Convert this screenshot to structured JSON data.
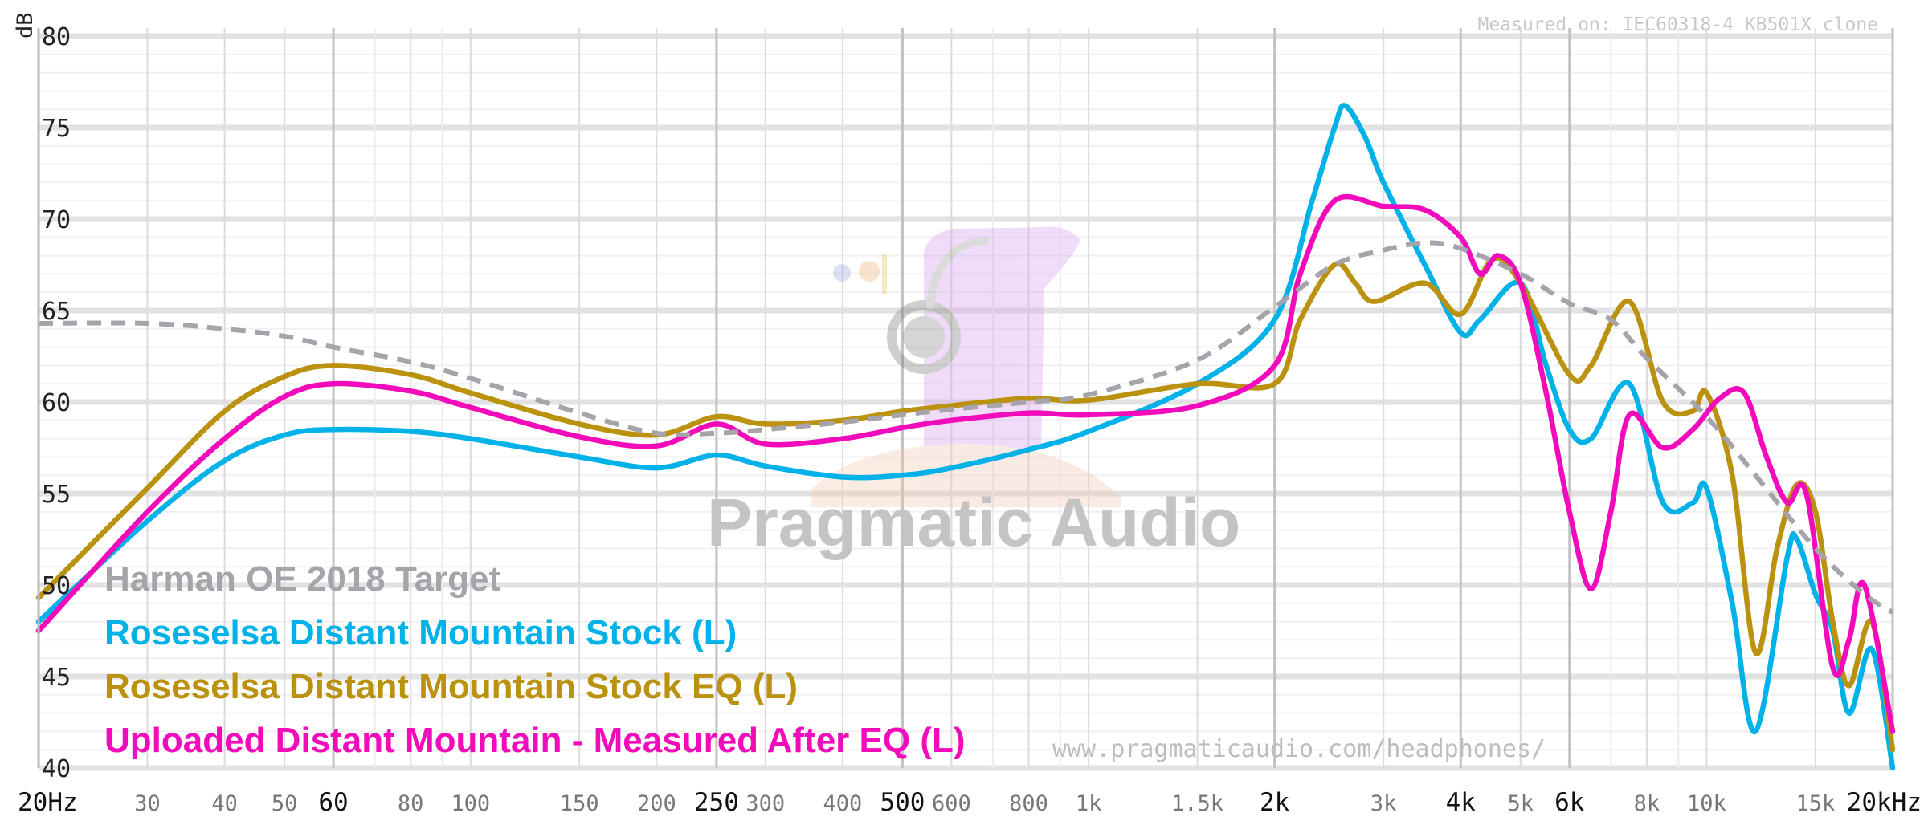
{
  "chart_data": {
    "type": "line",
    "y_unit": "dB",
    "ylim": [
      40,
      80
    ],
    "xlim": [
      20,
      20000
    ],
    "x_scale": "log",
    "y_ticks": [
      40,
      45,
      50,
      55,
      60,
      65,
      70,
      75,
      80
    ],
    "x_ticks": [
      {
        "f": 20,
        "label": "20Hz",
        "major": true
      },
      {
        "f": 30,
        "label": "30",
        "major": false
      },
      {
        "f": 40,
        "label": "40",
        "major": false
      },
      {
        "f": 50,
        "label": "50",
        "major": false
      },
      {
        "f": 60,
        "label": "60",
        "major": true
      },
      {
        "f": 80,
        "label": "80",
        "major": false
      },
      {
        "f": 100,
        "label": "100",
        "major": false
      },
      {
        "f": 150,
        "label": "150",
        "major": false
      },
      {
        "f": 200,
        "label": "200",
        "major": false
      },
      {
        "f": 250,
        "label": "250",
        "major": true
      },
      {
        "f": 300,
        "label": "300",
        "major": false
      },
      {
        "f": 400,
        "label": "400",
        "major": false
      },
      {
        "f": 500,
        "label": "500",
        "major": true
      },
      {
        "f": 600,
        "label": "600",
        "major": false
      },
      {
        "f": 800,
        "label": "800",
        "major": false
      },
      {
        "f": 1000,
        "label": "1k",
        "major": false
      },
      {
        "f": 1500,
        "label": "1.5k",
        "major": false
      },
      {
        "f": 2000,
        "label": "2k",
        "major": true
      },
      {
        "f": 3000,
        "label": "3k",
        "major": false
      },
      {
        "f": 4000,
        "label": "4k",
        "major": true
      },
      {
        "f": 5000,
        "label": "5k",
        "major": false
      },
      {
        "f": 6000,
        "label": "6k",
        "major": true
      },
      {
        "f": 8000,
        "label": "8k",
        "major": false
      },
      {
        "f": 10000,
        "label": "10k",
        "major": false
      },
      {
        "f": 15000,
        "label": "15k",
        "major": false
      },
      {
        "f": 20000,
        "label": "20kHz",
        "major": true
      }
    ],
    "grid": true,
    "measured_note": "Measured on: IEC60318-4 KB501X clone",
    "watermark": "Pragmatic Audio",
    "url": "www.pragmaticaudio.com/headphones/",
    "legend_position": "bottom-left",
    "series": [
      {
        "name": "Harman OE 2018 Target",
        "color": "#a6a3aa",
        "dashed": true,
        "points": [
          [
            20,
            64.3
          ],
          [
            30,
            64.3
          ],
          [
            40,
            64.0
          ],
          [
            50,
            63.6
          ],
          [
            60,
            63.0
          ],
          [
            80,
            62.2
          ],
          [
            100,
            61.3
          ],
          [
            150,
            59.4
          ],
          [
            200,
            58.3
          ],
          [
            250,
            58.3
          ],
          [
            300,
            58.5
          ],
          [
            400,
            58.9
          ],
          [
            500,
            59.3
          ],
          [
            600,
            59.6
          ],
          [
            800,
            60.0
          ],
          [
            1000,
            60.4
          ],
          [
            1500,
            62.3
          ],
          [
            2000,
            65.2
          ],
          [
            2500,
            67.5
          ],
          [
            3000,
            68.3
          ],
          [
            3500,
            68.7
          ],
          [
            4000,
            68.4
          ],
          [
            5000,
            67.0
          ],
          [
            6000,
            65.4
          ],
          [
            7000,
            64.5
          ],
          [
            8000,
            62.4
          ],
          [
            10000,
            59.2
          ],
          [
            12000,
            56.0
          ],
          [
            15000,
            52.0
          ],
          [
            18000,
            49.5
          ],
          [
            20000,
            48.5
          ]
        ]
      },
      {
        "name": "Roseselsa Distant Mountain Stock (L)",
        "color": "#00b2e8",
        "dashed": false,
        "points": [
          [
            20,
            48.0
          ],
          [
            30,
            53.5
          ],
          [
            40,
            56.8
          ],
          [
            50,
            58.2
          ],
          [
            60,
            58.5
          ],
          [
            80,
            58.4
          ],
          [
            100,
            58.0
          ],
          [
            150,
            57.0
          ],
          [
            200,
            56.4
          ],
          [
            250,
            57.1
          ],
          [
            300,
            56.5
          ],
          [
            400,
            55.9
          ],
          [
            500,
            56.0
          ],
          [
            600,
            56.4
          ],
          [
            800,
            57.4
          ],
          [
            1000,
            58.4
          ],
          [
            1500,
            61.0
          ],
          [
            2000,
            64.5
          ],
          [
            2300,
            71.0
          ],
          [
            2500,
            75.0
          ],
          [
            2600,
            76.2
          ],
          [
            2800,
            74.5
          ],
          [
            3000,
            72.0
          ],
          [
            3500,
            67.5
          ],
          [
            4000,
            63.8
          ],
          [
            4300,
            64.5
          ],
          [
            5000,
            66.5
          ],
          [
            5500,
            62.0
          ],
          [
            6000,
            58.5
          ],
          [
            6500,
            58.0
          ],
          [
            7500,
            61.0
          ],
          [
            8500,
            54.5
          ],
          [
            9500,
            54.5
          ],
          [
            10000,
            55.3
          ],
          [
            11000,
            49.0
          ],
          [
            12000,
            42.0
          ],
          [
            13500,
            51.5
          ],
          [
            14000,
            52.5
          ],
          [
            15000,
            49.5
          ],
          [
            16000,
            47.5
          ],
          [
            17000,
            43.0
          ],
          [
            18500,
            46.5
          ],
          [
            20000,
            40.0
          ]
        ]
      },
      {
        "name": "Roseselsa Distant Mountain Stock EQ (L)",
        "color": "#bb920f",
        "dashed": false,
        "points": [
          [
            20,
            49.3
          ],
          [
            30,
            55.3
          ],
          [
            40,
            59.5
          ],
          [
            50,
            61.4
          ],
          [
            60,
            62.0
          ],
          [
            80,
            61.5
          ],
          [
            100,
            60.5
          ],
          [
            150,
            58.8
          ],
          [
            200,
            58.2
          ],
          [
            250,
            59.2
          ],
          [
            300,
            58.8
          ],
          [
            400,
            59.0
          ],
          [
            500,
            59.5
          ],
          [
            600,
            59.8
          ],
          [
            800,
            60.2
          ],
          [
            1000,
            60.1
          ],
          [
            1500,
            61.0
          ],
          [
            2000,
            61.0
          ],
          [
            2200,
            64.5
          ],
          [
            2500,
            67.5
          ],
          [
            2700,
            66.5
          ],
          [
            2900,
            65.5
          ],
          [
            3500,
            66.5
          ],
          [
            4000,
            64.8
          ],
          [
            4500,
            67.8
          ],
          [
            5000,
            66.5
          ],
          [
            6000,
            61.5
          ],
          [
            6500,
            62.0
          ],
          [
            7500,
            65.5
          ],
          [
            8500,
            60.0
          ],
          [
            9500,
            59.5
          ],
          [
            10000,
            60.5
          ],
          [
            11000,
            56.0
          ],
          [
            12000,
            46.3
          ],
          [
            13000,
            52.0
          ],
          [
            14000,
            55.5
          ],
          [
            15000,
            54.0
          ],
          [
            16000,
            48.0
          ],
          [
            17000,
            44.5
          ],
          [
            18500,
            48.0
          ],
          [
            20000,
            41.0
          ]
        ]
      },
      {
        "name": "Uploaded Distant Mountain - Measured After EQ (L)",
        "color": "#f20bbb",
        "dashed": false,
        "points": [
          [
            20,
            47.5
          ],
          [
            30,
            54.0
          ],
          [
            40,
            58.0
          ],
          [
            50,
            60.3
          ],
          [
            60,
            61.0
          ],
          [
            80,
            60.6
          ],
          [
            100,
            59.7
          ],
          [
            150,
            58.1
          ],
          [
            200,
            57.6
          ],
          [
            250,
            58.8
          ],
          [
            300,
            57.7
          ],
          [
            400,
            58.0
          ],
          [
            500,
            58.6
          ],
          [
            600,
            59.0
          ],
          [
            800,
            59.4
          ],
          [
            1000,
            59.3
          ],
          [
            1500,
            59.8
          ],
          [
            2000,
            62.0
          ],
          [
            2200,
            67.0
          ],
          [
            2500,
            71.0
          ],
          [
            3000,
            70.7
          ],
          [
            3500,
            70.5
          ],
          [
            4000,
            69.0
          ],
          [
            4300,
            67.0
          ],
          [
            4600,
            68.0
          ],
          [
            5000,
            66.5
          ],
          [
            5500,
            60.5
          ],
          [
            6000,
            54.0
          ],
          [
            6500,
            49.8
          ],
          [
            7000,
            54.0
          ],
          [
            7500,
            59.3
          ],
          [
            8500,
            57.5
          ],
          [
            9500,
            58.5
          ],
          [
            10500,
            60.2
          ],
          [
            11500,
            60.5
          ],
          [
            12500,
            57.0
          ],
          [
            13500,
            54.5
          ],
          [
            14500,
            55.0
          ],
          [
            16000,
            45.5
          ],
          [
            17000,
            47.0
          ],
          [
            18000,
            50.0
          ],
          [
            20000,
            42.0
          ]
        ]
      }
    ]
  }
}
